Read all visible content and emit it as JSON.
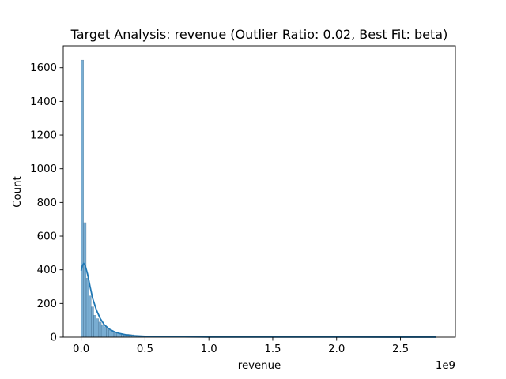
{
  "chart_data": {
    "type": "bar",
    "title": "Target Analysis: revenue (Outlier Ratio: 0.02, Best Fit: beta)",
    "xlabel": "revenue",
    "ylabel": "Count",
    "x_offset_text": "1e9",
    "xlim": [
      -0.14,
      2.93
    ],
    "ylim": [
      0,
      1730
    ],
    "xticks": [
      {
        "value": 0.0,
        "label": "0.0"
      },
      {
        "value": 0.5,
        "label": "0.5"
      },
      {
        "value": 1.0,
        "label": "1.0"
      },
      {
        "value": 1.5,
        "label": "1.5"
      },
      {
        "value": 2.0,
        "label": "2.0"
      },
      {
        "value": 2.5,
        "label": "2.5"
      }
    ],
    "yticks": [
      {
        "value": 0,
        "label": "0"
      },
      {
        "value": 200,
        "label": "200"
      },
      {
        "value": 400,
        "label": "400"
      },
      {
        "value": 600,
        "label": "600"
      },
      {
        "value": 800,
        "label": "800"
      },
      {
        "value": 1000,
        "label": "1000"
      },
      {
        "value": 1200,
        "label": "1200"
      },
      {
        "value": 1400,
        "label": "1400"
      },
      {
        "value": 1600,
        "label": "1600"
      }
    ],
    "bin_edges_start": 0.0,
    "bin_width": 0.0197,
    "counts": [
      1645,
      680,
      350,
      245,
      180,
      130,
      110,
      90,
      75,
      62,
      50,
      42,
      35,
      30,
      26,
      22,
      20,
      18,
      17,
      16,
      14,
      10,
      8,
      7,
      6,
      5,
      5,
      4,
      4,
      3,
      3,
      3,
      3,
      2,
      2,
      2,
      2,
      2,
      2,
      2,
      2,
      2,
      1,
      1,
      1,
      1,
      1,
      1,
      1,
      1,
      1,
      1,
      1,
      1,
      1,
      1,
      1,
      1,
      1,
      1,
      1,
      1,
      1,
      1,
      1,
      1,
      1,
      1,
      1,
      1,
      1,
      1,
      1,
      1,
      1,
      1,
      1,
      1,
      1,
      1,
      1,
      1,
      1,
      1,
      1,
      1,
      1,
      1,
      1,
      1,
      1,
      1,
      1,
      1,
      1,
      1,
      1,
      1,
      1,
      1,
      1,
      1,
      1,
      1,
      1,
      1,
      1,
      1,
      1,
      1,
      1,
      1,
      1,
      1,
      1,
      1,
      1,
      1,
      1,
      1,
      1,
      1,
      1,
      1,
      1,
      1,
      1,
      1,
      1,
      1,
      1,
      1,
      1,
      1,
      1,
      1,
      1,
      1,
      1,
      1,
      1
    ],
    "kde": {
      "x": [
        0.0,
        0.01,
        0.02,
        0.03,
        0.05,
        0.07,
        0.09,
        0.12,
        0.15,
        0.18,
        0.22,
        0.26,
        0.3,
        0.35,
        0.4,
        0.5,
        0.6,
        0.8,
        1.0,
        1.3,
        1.6,
        2.0,
        2.4,
        2.78
      ],
      "y": [
        395,
        425,
        438,
        430,
        375,
        300,
        230,
        160,
        110,
        75,
        48,
        32,
        22,
        14,
        9,
        5,
        3,
        2,
        1,
        1,
        0.5,
        0.5,
        0.3,
        0.2
      ]
    },
    "bar_color": "#1f77b4",
    "bar_alpha": 0.6,
    "line_color": "#1f77b4",
    "grid": false,
    "legend": false
  }
}
